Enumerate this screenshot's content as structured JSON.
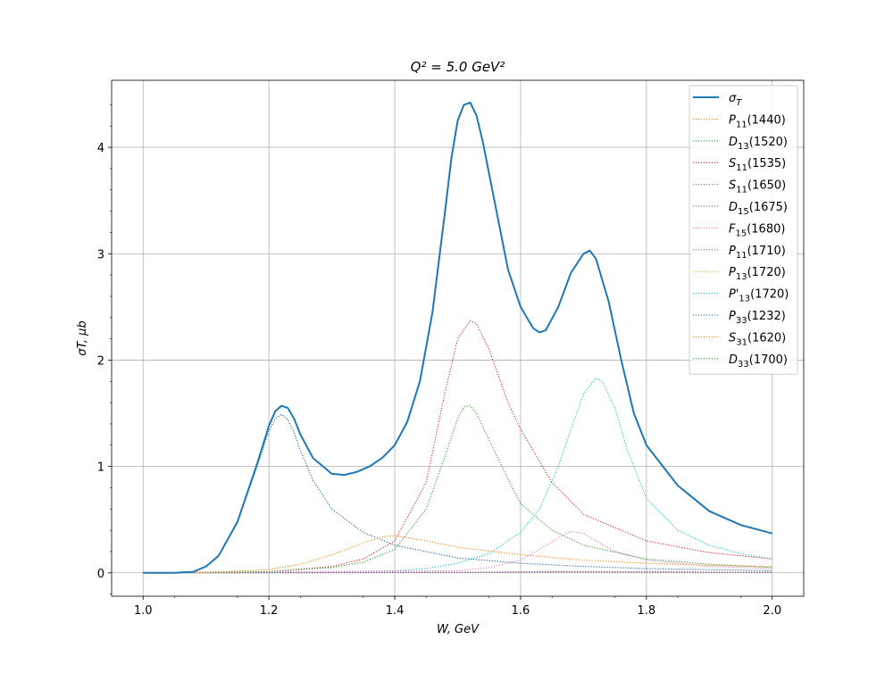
{
  "chart_data": {
    "type": "line",
    "title": "Q² = 5.0 GeV²",
    "xlabel": "W, GeV",
    "ylabel": "σT, μb",
    "xlim": [
      0.95,
      2.05
    ],
    "ylim": [
      -0.22,
      4.63
    ],
    "grid": true,
    "legend_position": "top-right",
    "x_ticks": [
      1.0,
      1.2,
      1.4,
      1.6,
      1.8,
      2.0
    ],
    "x_tick_labels": [
      "1.0",
      "1.2",
      "1.4",
      "1.6",
      "1.8",
      "2.0"
    ],
    "y_ticks": [
      0,
      1,
      2,
      3,
      4
    ],
    "y_tick_labels": [
      "0",
      "1",
      "2",
      "3",
      "4"
    ],
    "series": [
      {
        "name": "σT",
        "sym": "σ",
        "sub": "T",
        "paren": "",
        "color": "#1f77b4",
        "style": "solid",
        "x": [
          1.0,
          1.05,
          1.08,
          1.1,
          1.12,
          1.15,
          1.18,
          1.2,
          1.21,
          1.22,
          1.23,
          1.24,
          1.25,
          1.27,
          1.3,
          1.32,
          1.34,
          1.36,
          1.38,
          1.4,
          1.42,
          1.44,
          1.46,
          1.48,
          1.49,
          1.5,
          1.51,
          1.52,
          1.53,
          1.54,
          1.56,
          1.58,
          1.6,
          1.62,
          1.63,
          1.64,
          1.66,
          1.68,
          1.7,
          1.71,
          1.72,
          1.74,
          1.76,
          1.78,
          1.8,
          1.85,
          1.9,
          1.95,
          2.0
        ],
        "y": [
          0.0,
          0.0,
          0.01,
          0.06,
          0.16,
          0.48,
          1.0,
          1.38,
          1.52,
          1.57,
          1.55,
          1.45,
          1.3,
          1.08,
          0.93,
          0.92,
          0.95,
          1.0,
          1.08,
          1.2,
          1.42,
          1.8,
          2.45,
          3.4,
          3.9,
          4.25,
          4.4,
          4.42,
          4.3,
          4.05,
          3.45,
          2.85,
          2.5,
          2.3,
          2.26,
          2.28,
          2.5,
          2.82,
          3.0,
          3.03,
          2.95,
          2.55,
          2.0,
          1.5,
          1.2,
          0.82,
          0.58,
          0.45,
          0.37
        ]
      },
      {
        "name": "P11(1440)",
        "sym": "P",
        "sub": "11",
        "paren": "(1440)",
        "color": "#ff7f0e",
        "style": "dotted",
        "x": [
          1.0,
          1.1,
          1.2,
          1.25,
          1.3,
          1.35,
          1.38,
          1.4,
          1.45,
          1.5,
          1.6,
          1.7,
          1.8,
          1.9,
          2.0
        ],
        "y": [
          0.0,
          0.005,
          0.03,
          0.08,
          0.17,
          0.28,
          0.34,
          0.35,
          0.3,
          0.24,
          0.17,
          0.12,
          0.09,
          0.07,
          0.06
        ]
      },
      {
        "name": "D13(1520)",
        "sym": "D",
        "sub": "13",
        "paren": "(1520)",
        "color": "#2ca02c",
        "style": "dotted",
        "x": [
          1.0,
          1.2,
          1.3,
          1.35,
          1.4,
          1.45,
          1.48,
          1.5,
          1.51,
          1.52,
          1.53,
          1.55,
          1.58,
          1.6,
          1.65,
          1.7,
          1.8,
          1.9,
          2.0
        ],
        "y": [
          0.0,
          0.01,
          0.05,
          0.1,
          0.22,
          0.6,
          1.1,
          1.45,
          1.56,
          1.57,
          1.5,
          1.25,
          0.88,
          0.65,
          0.4,
          0.26,
          0.13,
          0.08,
          0.05
        ]
      },
      {
        "name": "S11(1535)",
        "sym": "S",
        "sub": "11",
        "paren": "(1535)",
        "color": "#d62728",
        "style": "dotted",
        "x": [
          1.0,
          1.2,
          1.3,
          1.35,
          1.4,
          1.45,
          1.48,
          1.5,
          1.52,
          1.53,
          1.55,
          1.58,
          1.6,
          1.65,
          1.7,
          1.8,
          1.9,
          2.0
        ],
        "y": [
          0.0,
          0.01,
          0.06,
          0.13,
          0.3,
          0.85,
          1.7,
          2.2,
          2.37,
          2.34,
          2.1,
          1.6,
          1.35,
          0.85,
          0.55,
          0.3,
          0.19,
          0.13
        ]
      },
      {
        "name": "S11(1650)",
        "sym": "S",
        "sub": "11",
        "paren": "(1650)",
        "color": "#9467bd",
        "style": "dotted",
        "x": [
          1.0,
          1.5,
          1.6,
          1.65,
          1.7,
          1.8,
          2.0
        ],
        "y": [
          0.0,
          0.005,
          0.01,
          0.015,
          0.012,
          0.008,
          0.004
        ]
      },
      {
        "name": "D15(1675)",
        "sym": "D",
        "sub": "15",
        "paren": "(1675)",
        "color": "#8c564b",
        "style": "dotted",
        "x": [
          1.0,
          1.5,
          1.6,
          1.68,
          1.75,
          1.85,
          2.0
        ],
        "y": [
          0.0,
          0.004,
          0.008,
          0.012,
          0.01,
          0.007,
          0.004
        ]
      },
      {
        "name": "F15(1680)",
        "sym": "F",
        "sub": "15",
        "paren": "(1680)",
        "color": "#e377c2",
        "style": "dotted",
        "x": [
          1.0,
          1.5,
          1.55,
          1.6,
          1.63,
          1.66,
          1.68,
          1.7,
          1.72,
          1.75,
          1.8,
          1.9,
          2.0
        ],
        "y": [
          0.0,
          0.02,
          0.05,
          0.12,
          0.22,
          0.33,
          0.39,
          0.37,
          0.3,
          0.2,
          0.12,
          0.06,
          0.04
        ]
      },
      {
        "name": "P11(1710)",
        "sym": "P",
        "sub": "11",
        "paren": "(1710)",
        "color": "#7f7f7f",
        "style": "dotted",
        "x": [
          1.0,
          1.5,
          1.65,
          1.71,
          1.8,
          2.0
        ],
        "y": [
          0.0,
          0.003,
          0.008,
          0.01,
          0.008,
          0.004
        ]
      },
      {
        "name": "P13(1720)",
        "sym": "P",
        "sub": "13",
        "paren": "(1720)",
        "color": "#bcbd22",
        "style": "dotted",
        "x": [
          1.0,
          1.5,
          1.65,
          1.72,
          1.8,
          2.0
        ],
        "y": [
          0.0,
          0.004,
          0.01,
          0.012,
          0.01,
          0.005
        ]
      },
      {
        "name": "P'13(1720)",
        "sym": "P'",
        "sub": "13",
        "paren": "(1720)",
        "color": "#17becf",
        "style": "dotted",
        "x": [
          1.0,
          1.3,
          1.4,
          1.45,
          1.5,
          1.55,
          1.6,
          1.63,
          1.66,
          1.68,
          1.7,
          1.72,
          1.73,
          1.75,
          1.77,
          1.8,
          1.85,
          1.9,
          1.95,
          2.0
        ],
        "y": [
          0.0,
          0.01,
          0.02,
          0.04,
          0.09,
          0.18,
          0.38,
          0.6,
          1.0,
          1.35,
          1.68,
          1.83,
          1.8,
          1.55,
          1.15,
          0.7,
          0.4,
          0.26,
          0.18,
          0.13
        ]
      },
      {
        "name": "P33(1232)",
        "sym": "P",
        "sub": "33",
        "paren": "(1232)",
        "color": "#1f5fa8",
        "style": "dotted",
        "x": [
          1.0,
          1.05,
          1.08,
          1.1,
          1.12,
          1.15,
          1.18,
          1.2,
          1.21,
          1.22,
          1.23,
          1.24,
          1.25,
          1.27,
          1.3,
          1.35,
          1.4,
          1.5,
          1.6,
          1.7,
          1.8,
          1.9,
          2.0
        ],
        "y": [
          0.0,
          0.0,
          0.01,
          0.06,
          0.16,
          0.47,
          0.98,
          1.33,
          1.45,
          1.49,
          1.44,
          1.32,
          1.15,
          0.87,
          0.6,
          0.38,
          0.26,
          0.14,
          0.09,
          0.06,
          0.04,
          0.03,
          0.02
        ]
      },
      {
        "name": "S31(1620)",
        "sym": "S",
        "sub": "31",
        "paren": "(1620)",
        "color": "#ff7f0e",
        "style": "dotted",
        "x": [
          1.0,
          1.5,
          1.6,
          1.62,
          1.7,
          2.0
        ],
        "y": [
          0.0,
          0.003,
          0.008,
          0.009,
          0.007,
          0.003
        ]
      },
      {
        "name": "D33(1700)",
        "sym": "D",
        "sub": "33",
        "paren": "(1700)",
        "color": "#2ca02c",
        "style": "dotted",
        "x": [
          1.0,
          1.5,
          1.65,
          1.7,
          1.8,
          2.0
        ],
        "y": [
          0.0,
          0.004,
          0.009,
          0.011,
          0.009,
          0.005
        ]
      }
    ]
  }
}
